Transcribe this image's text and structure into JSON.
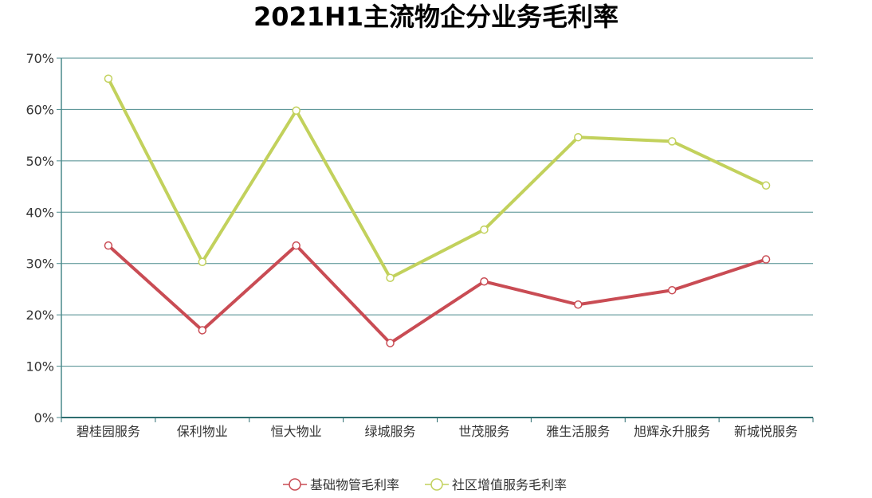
{
  "chart_data": {
    "type": "line",
    "title": "2021H1主流物企分业务毛利率",
    "xlabel": "",
    "ylabel": "",
    "categories": [
      "碧桂园服务",
      "保利物业",
      "恒大物业",
      "绿城服务",
      "世茂服务",
      "雅生活服务",
      "旭辉永升服务",
      "新城悦服务"
    ],
    "ylim": [
      0,
      70
    ],
    "yticks": [
      "0%",
      "10%",
      "20%",
      "30%",
      "40%",
      "50%",
      "60%",
      "70%"
    ],
    "grid": true,
    "legend_position": "bottom",
    "series": [
      {
        "name": "基础物管毛利率",
        "color": "#c94c54",
        "values": [
          33.5,
          17.0,
          33.5,
          14.5,
          26.5,
          22.0,
          24.8,
          30.8
        ]
      },
      {
        "name": "社区增值服务毛利率",
        "color": "#c2d15c",
        "values": [
          66.0,
          30.3,
          59.8,
          27.2,
          36.6,
          54.6,
          53.8,
          45.2
        ]
      }
    ]
  }
}
